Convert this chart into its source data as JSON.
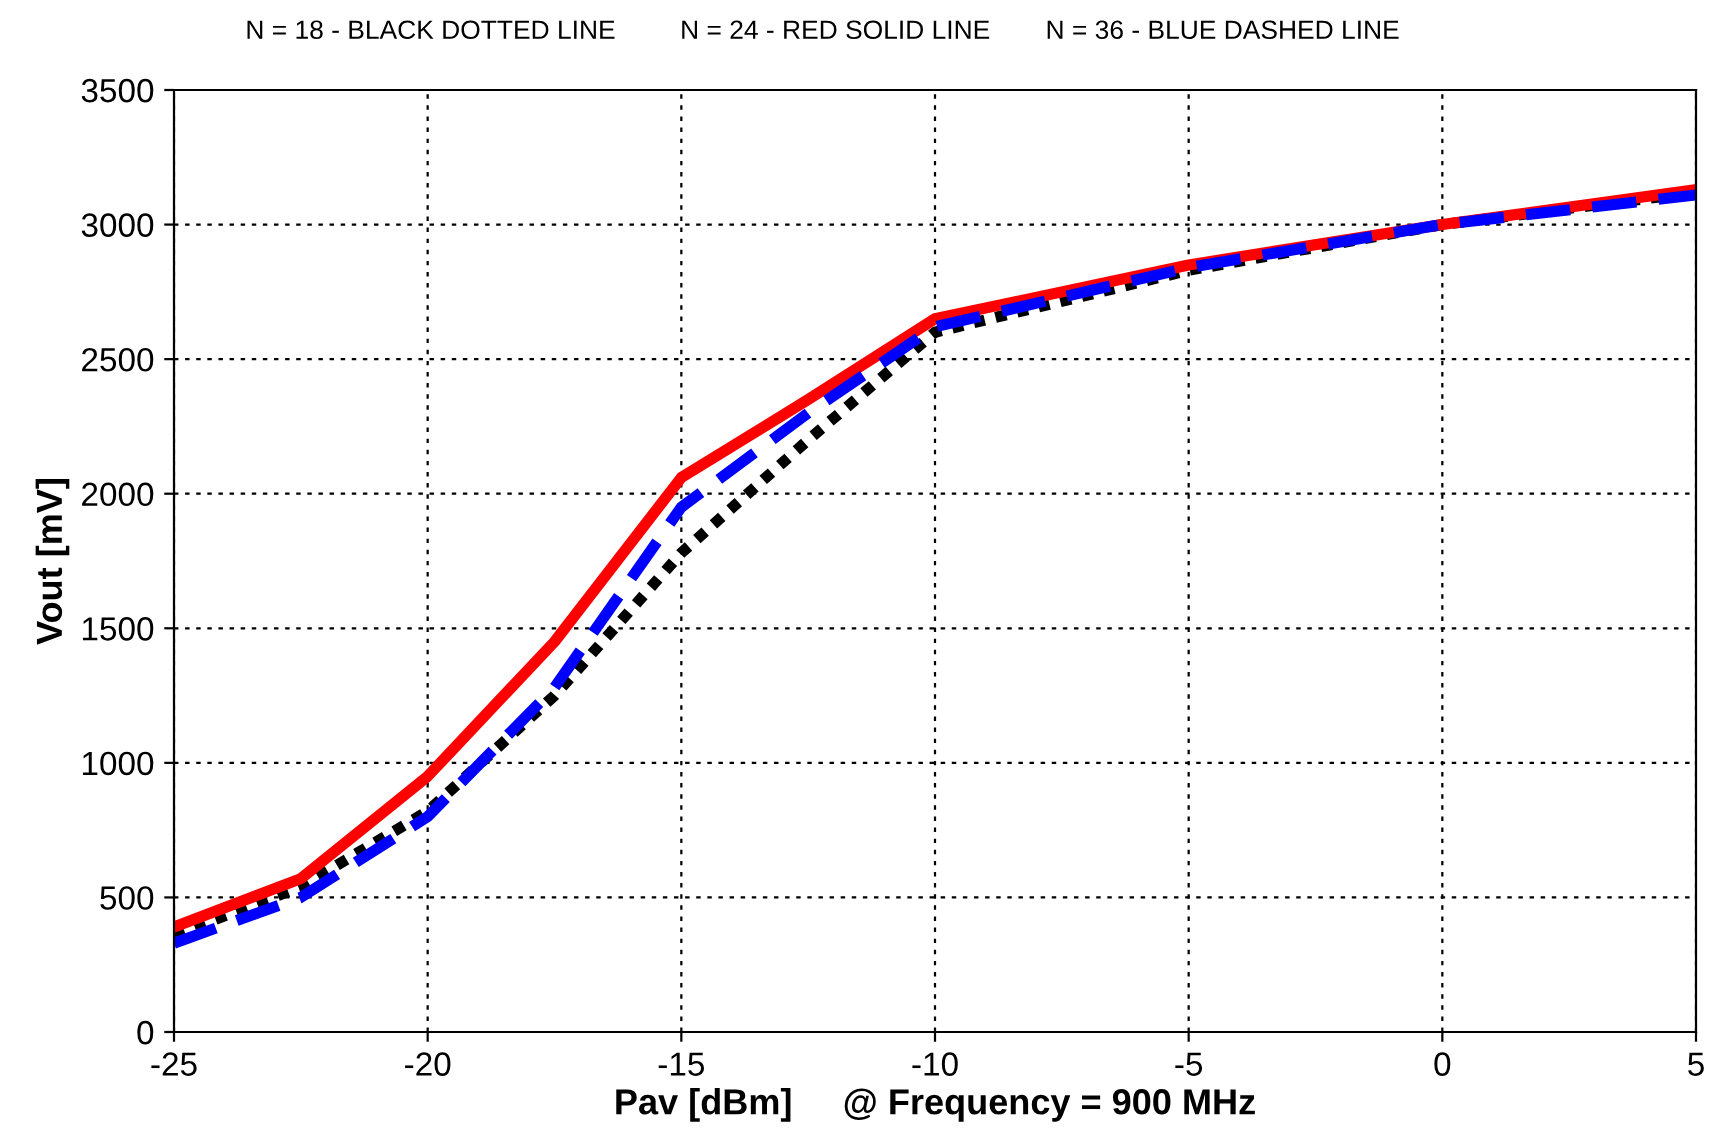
{
  "chart_data": {
    "type": "line",
    "xlabel": "Pav [dBm]     @ Frequency = 900 MHz",
    "ylabel": "Vout [mV]",
    "annotations": [
      "N = 18 - BLACK DOTTED LINE",
      "N = 24 - RED SOLID LINE",
      "N = 36 - BLUE DASHED LINE"
    ],
    "x": [
      -25,
      -22.5,
      -20,
      -17.5,
      -15,
      -12.5,
      -10,
      -5,
      0,
      5
    ],
    "series": [
      {
        "color": "#000000",
        "line_style": "dotted",
        "values": [
          360,
          540,
          820,
          1250,
          1780,
          2200,
          2600,
          2830,
          3000,
          3120
        ]
      },
      {
        "color": "#ff0000",
        "line_style": "solid",
        "values": [
          390,
          570,
          950,
          1450,
          2060,
          2350,
          2650,
          2850,
          3000,
          3130
        ]
      },
      {
        "color": "#0000ff",
        "line_style": "dashed",
        "values": [
          330,
          500,
          800,
          1280,
          1950,
          2300,
          2620,
          2840,
          3000,
          3110
        ]
      }
    ],
    "xlim": [
      -25,
      5
    ],
    "xticks": [
      -25,
      -20,
      -15,
      -10,
      -5,
      0,
      5
    ],
    "ylim": [
      0,
      3500
    ],
    "yticks": [
      0,
      500,
      1000,
      1500,
      2000,
      2500,
      3000,
      3500
    ],
    "grid": true
  }
}
